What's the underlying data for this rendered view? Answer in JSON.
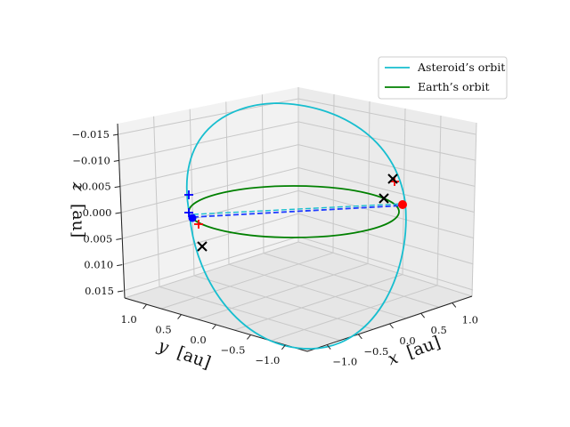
{
  "chart_data": {
    "type": "line3d",
    "title": "",
    "xlabel_var": "x",
    "ylabel_var": "y",
    "zlabel_var": "z",
    "unit": "[au]",
    "x_ticks": [
      "−1.0",
      "−0.5",
      "0.0",
      "0.5",
      "1.0"
    ],
    "y_ticks": [
      "−1.0",
      "−0.5",
      "0.0",
      "0.5",
      "1.0"
    ],
    "z_ticks": [
      "−0.015",
      "−0.010",
      "−0.005",
      "0.000",
      "0.005",
      "0.010",
      "0.015"
    ],
    "xlim": [
      -1.2,
      1.2
    ],
    "ylim": [
      -1.2,
      1.2
    ],
    "zlim": [
      -0.016,
      0.018
    ],
    "legend": {
      "location": "top-right",
      "entries": [
        {
          "label": "Asteroid’s orbit",
          "color": "#17becf"
        },
        {
          "label": "Earth’s orbit",
          "color": "#008000"
        }
      ]
    },
    "series": [
      {
        "name": "Asteroid’s orbit",
        "color": "#17becf",
        "kind": "ellipse",
        "semi_major_axis_au": 1.0,
        "eccentricity": 0.05,
        "inclination_deg": 78
      },
      {
        "name": "Earth’s orbit",
        "color": "#008000",
        "kind": "circle",
        "radius_au": 1.0,
        "inclination_deg": 0
      }
    ],
    "markers": {
      "sun_position": {
        "x": 0.0,
        "y": 0.0,
        "z": 0.0
      },
      "blue_plus": [
        {
          "x": 0.98,
          "y": 0.0,
          "z": 0.004
        },
        {
          "x": 1.0,
          "y": 0.0,
          "z": 0.0
        }
      ],
      "red_plus": [
        {
          "x": 0.92,
          "y": 0.05,
          "z": -0.001
        },
        {
          "x": -0.95,
          "y": -0.25,
          "z": 0.006
        }
      ],
      "black_x": [
        {
          "x": 0.72,
          "y": 0.55,
          "z": -0.006
        },
        {
          "x": -0.95,
          "y": -0.28,
          "z": 0.007
        },
        {
          "x": -1.0,
          "y": 0.0,
          "z": 0.003
        }
      ],
      "red_dot": {
        "x": -0.98,
        "y": -0.35,
        "z": 0.0
      },
      "blue_dot": {
        "x": 1.0,
        "y": 0.02,
        "z": 0.0
      }
    },
    "dashed_lines": [
      {
        "color": "#1f3cff",
        "label": "Earth–asteroid line 1"
      },
      {
        "color": "#17becf",
        "label": "Earth–asteroid line 2"
      }
    ]
  }
}
